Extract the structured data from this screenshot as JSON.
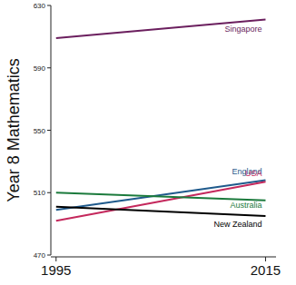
{
  "chart_data": {
    "type": "line",
    "y_label": "Year 8 Mathematics",
    "x": [
      1995,
      2015
    ],
    "xlim": [
      1994.5,
      2016
    ],
    "xticks": [
      1995,
      2015
    ],
    "ylim": [
      470,
      630
    ],
    "yticks": [
      470,
      510,
      550,
      590,
      630
    ],
    "grid": false,
    "series": [
      {
        "name": "Singapore",
        "color": "#6b1f5e",
        "values": [
          609,
          621
        ]
      },
      {
        "name": "England",
        "color": "#1f5a8c",
        "values": [
          499,
          518
        ]
      },
      {
        "name": "USA",
        "color": "#c4285c",
        "values": [
          492,
          517
        ]
      },
      {
        "name": "Australia",
        "color": "#1b7a3c",
        "values": [
          510,
          505
        ]
      },
      {
        "name": "New Zealand",
        "color": "#000000",
        "values": [
          501,
          495
        ]
      }
    ]
  }
}
